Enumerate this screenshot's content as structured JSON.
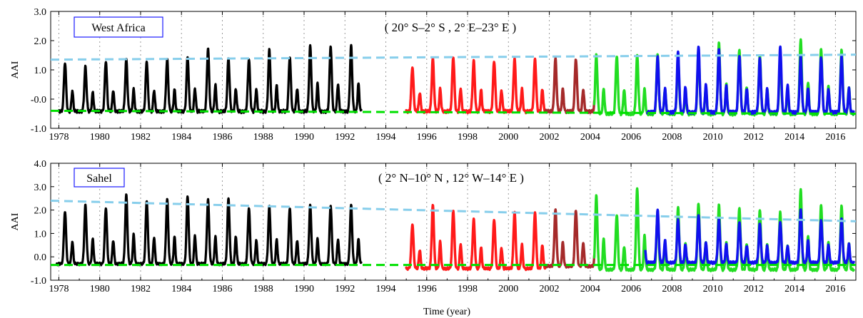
{
  "figure": {
    "xlabel": "Time (year)"
  },
  "chart_data": [
    {
      "type": "line",
      "region_label": "West Africa",
      "title": "( 20° S–2°  S , 2°  E–23°  E )",
      "ylabel": "AAI",
      "xlabel": "Time (year)",
      "xlim": [
        1977.6,
        2017.0
      ],
      "ylim": [
        -1.0,
        3.0
      ],
      "yticks": [
        "-1.0",
        "-0.0",
        "1.0",
        "2.0",
        "3.0"
      ],
      "xticks": [
        "1978",
        "1980",
        "1982",
        "1984",
        "1986",
        "1988",
        "1990",
        "1992",
        "1994",
        "1996",
        "1998",
        "2000",
        "2002",
        "2004",
        "2006",
        "2008",
        "2010",
        "2012",
        "2014",
        "2016"
      ],
      "grid": "vertical dotted",
      "trend_lines": [
        {
          "name": "max-trend",
          "color": "#87CEEB",
          "x": [
            1977.6,
            2017.0
          ],
          "y": [
            1.35,
            1.52
          ]
        },
        {
          "name": "min-trend",
          "color": "#00E000",
          "x": [
            1977.6,
            2017.0
          ],
          "y": [
            -0.4,
            -0.5
          ]
        }
      ],
      "series": [
        {
          "color": "#000000",
          "x_start": 1978.0,
          "x_end": 1992.8,
          "baseline": -0.42,
          "peaks": [
            1.25,
            1.1,
            1.3,
            1.35,
            1.3,
            1.35,
            1.45,
            1.72,
            1.4,
            1.38,
            1.68,
            1.45,
            1.82
          ]
        },
        {
          "color": "#FF1A1A",
          "x_start": 1995.0,
          "x_end": 2001.8,
          "baseline": -0.42,
          "peaks": [
            1.1,
            1.38,
            1.45,
            1.3,
            1.3,
            1.38
          ]
        },
        {
          "color": "#A52A2A",
          "x_start": 2001.8,
          "x_end": 2004.2,
          "baseline": -0.42,
          "peaks": [
            1.35,
            1.38
          ]
        },
        {
          "color": "#22DD22",
          "x_start": 2004.2,
          "x_end": 2016.9,
          "baseline": -0.5,
          "peaks": [
            1.5,
            1.48,
            1.48,
            1.55,
            1.45,
            1.7,
            1.9,
            1.7,
            1.5,
            1.45,
            2.05,
            1.7
          ]
        },
        {
          "color": "#1010EE",
          "x_start": 2006.8,
          "x_end": 2016.9,
          "baseline": -0.45,
          "peaks": [
            1.48,
            1.45,
            1.62,
            1.82,
            1.68,
            1.5,
            1.38,
            1.82,
            1.45
          ]
        }
      ]
    },
    {
      "type": "line",
      "region_label": "Sahel",
      "title": "( 2°  N–10°  N , 12°  W–14°  E )",
      "ylabel": "AAI",
      "xlabel": "Time (year)",
      "xlim": [
        1977.6,
        2017.0
      ],
      "ylim": [
        -1.0,
        4.0
      ],
      "yticks": [
        "-1.0",
        "0.0",
        "1.0",
        "2.0",
        "3.0",
        "4.0"
      ],
      "xticks": [
        "1978",
        "1980",
        "1982",
        "1984",
        "1986",
        "1988",
        "1990",
        "1992",
        "1994",
        "1996",
        "1998",
        "2000",
        "2002",
        "2004",
        "2006",
        "2008",
        "2010",
        "2012",
        "2014",
        "2016"
      ],
      "grid": "vertical dotted",
      "trend_lines": [
        {
          "name": "max-trend",
          "color": "#87CEEB",
          "x": [
            1977.6,
            2017.0
          ],
          "y": [
            2.4,
            1.52
          ]
        },
        {
          "name": "min-trend",
          "color": "#00E000",
          "x": [
            1977.6,
            2017.0
          ],
          "y": [
            -0.35,
            -0.35
          ]
        }
      ],
      "series": [
        {
          "color": "#000000",
          "x_start": 1977.9,
          "x_end": 1992.8,
          "baseline": -0.3,
          "peaks": [
            2.1,
            1.95,
            2.2,
            2.1,
            2.65,
            2.4,
            2.45,
            2.6,
            2.45,
            2.5,
            2.1,
            2.15,
            2.1,
            2.2
          ]
        },
        {
          "color": "#FF1A1A",
          "x_start": 1995.0,
          "x_end": 2001.8,
          "baseline": -0.5,
          "peaks": [
            1.4,
            2.2,
            2.0,
            1.6,
            1.6,
            1.9,
            1.9
          ]
        },
        {
          "color": "#A52A2A",
          "x_start": 2001.8,
          "x_end": 2004.2,
          "baseline": -0.4,
          "peaks": [
            1.8,
            2.0
          ]
        },
        {
          "color": "#22DD22",
          "x_start": 2004.2,
          "x_end": 2016.9,
          "baseline": -0.55,
          "peaks": [
            2.6,
            1.8,
            2.9,
            2.0,
            2.1,
            2.3,
            2.2,
            2.1,
            2.0,
            1.9,
            2.9,
            2.2
          ]
        },
        {
          "color": "#1010EE",
          "x_start": 2006.7,
          "x_end": 2016.9,
          "baseline": -0.25,
          "peaks": [
            1.6,
            2.0,
            1.6,
            1.8,
            1.6,
            1.5,
            1.4,
            1.5,
            2.0,
            1.6
          ]
        }
      ]
    }
  ]
}
